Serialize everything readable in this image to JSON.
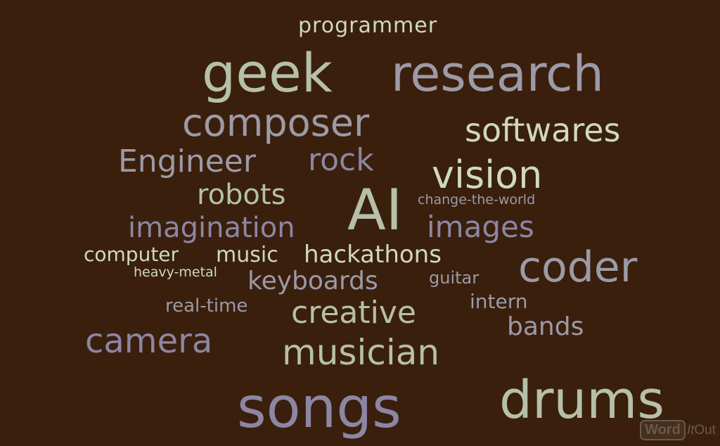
{
  "colors": {
    "background": "#3a1f0d",
    "sage": "#b5c0a8",
    "gray": "#9c9aa6",
    "lavender": "#8d86a3",
    "pale_green": "#cfd9bf"
  },
  "words": {
    "programmer": "programmer",
    "geek": "geek",
    "research": "research",
    "composer": "composer",
    "softwares": "softwares",
    "engineer": "Engineer",
    "rock": "rock",
    "vision": "vision",
    "robots": "robots",
    "ai": "AI",
    "change_the_world": "change-the-world",
    "imagination": "imagination",
    "images": "images",
    "computer": "computer",
    "music": "music",
    "hackathons": "hackathons",
    "heavy_metal": "heavy-metal",
    "keyboards": "keyboards",
    "guitar": "guitar",
    "coder": "coder",
    "real_time": "real-time",
    "creative": "creative",
    "intern": "intern",
    "bands": "bands",
    "camera": "camera",
    "musician": "musician",
    "songs": "songs",
    "drums": "drums"
  },
  "watermark": {
    "word": "Word",
    "it": "It",
    "out": "Out"
  }
}
